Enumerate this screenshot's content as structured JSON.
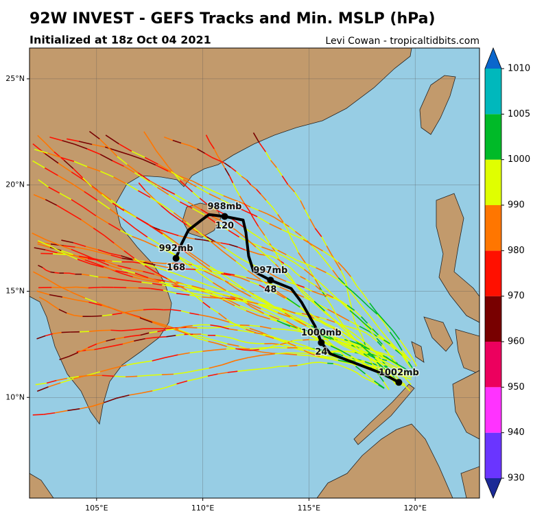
{
  "title": "92W INVEST - GEFS Tracks and Min. MSLP (hPa)",
  "subtitle": "Initialized at 18z Oct 04 2021",
  "credit": "Levi Cowan - tropicaltidbits.com",
  "map": {
    "lon_range": [
      101.84,
      123.03
    ],
    "lat_range": [
      5.26,
      26.45
    ],
    "lon_ticks": [
      {
        "value": 105,
        "label": "105°E"
      },
      {
        "value": 110,
        "label": "110°E"
      },
      {
        "value": 115,
        "label": "115°E"
      },
      {
        "value": 120,
        "label": "120°E"
      }
    ],
    "lat_ticks": [
      {
        "value": 10,
        "label": "10°N"
      },
      {
        "value": 15,
        "label": "15°N"
      },
      {
        "value": 20,
        "label": "20°N"
      },
      {
        "value": 25,
        "label": "25°N"
      }
    ],
    "mean_track": {
      "points": [
        [
          119.23,
          10.71
        ],
        [
          118.52,
          11.1
        ],
        [
          116.0,
          12.06
        ],
        [
          115.58,
          12.58
        ],
        [
          115.29,
          13.35
        ],
        [
          114.65,
          14.48
        ],
        [
          114.16,
          15.13
        ],
        [
          113.19,
          15.52
        ],
        [
          112.39,
          15.94
        ],
        [
          112.16,
          16.65
        ],
        [
          112.03,
          17.77
        ],
        [
          111.9,
          18.35
        ],
        [
          111.03,
          18.52
        ],
        [
          110.29,
          18.61
        ],
        [
          109.94,
          18.35
        ],
        [
          109.32,
          17.87
        ],
        [
          109.0,
          17.23
        ],
        [
          108.74,
          16.55
        ]
      ],
      "labels": [
        {
          "lon": 119.23,
          "lat": 10.71,
          "mslp": {
            "value": 1002,
            "label": "1002mb"
          }
        },
        {
          "lon": 115.58,
          "lat": 12.58,
          "mslp": {
            "value": 1000,
            "label": "1000mb"
          },
          "hour": 24
        },
        {
          "lon": 113.19,
          "lat": 15.52,
          "mslp": {
            "value": 997,
            "label": "997mb"
          },
          "hour": 48
        },
        {
          "lon": 111.03,
          "lat": 18.52,
          "mslp": {
            "value": 988,
            "label": "988mb"
          },
          "hour": 120
        },
        {
          "lon": 108.74,
          "lat": 16.55,
          "mslp": {
            "value": 992,
            "label": "992mb"
          },
          "hour": 168
        }
      ]
    }
  },
  "colorbar": {
    "ticks": [
      930,
      940,
      950,
      960,
      970,
      980,
      990,
      1000,
      1005,
      1010
    ],
    "colors": [
      "#6a35ff",
      "#ff33ff",
      "#ec005e",
      "#780000",
      "#ff1000",
      "#ff7600",
      "#e0ff00",
      "#00ba28",
      "#00b8bc"
    ],
    "extend_colors": [
      "#1b2a96",
      "#0a66cc"
    ]
  }
}
